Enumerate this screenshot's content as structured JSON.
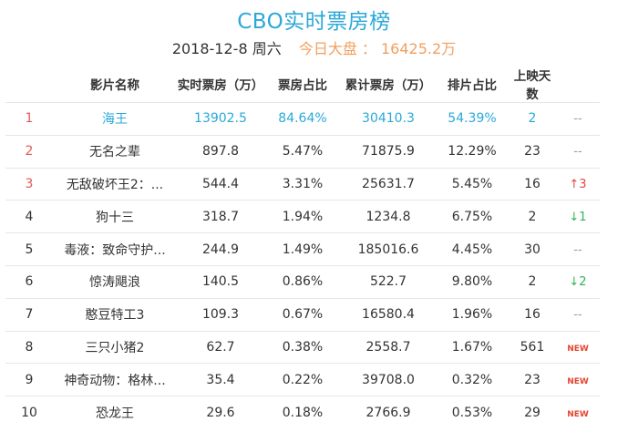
{
  "header": {
    "title": "CBO实时票房榜",
    "date": "2018-12-8 周六",
    "market_label": "今日大盘 ：",
    "market_value": "16425.2万"
  },
  "columns": [
    "影片名称",
    "实时票房（万）",
    "票房占比",
    "累计票房（万）",
    "排片占比",
    "上映天数",
    ""
  ],
  "rows": [
    {
      "rank": "1",
      "name": "海王",
      "realtime": "13902.5",
      "share": "84.64%",
      "total": "30410.3",
      "screen": "54.39%",
      "days": "2",
      "change": "--",
      "change_type": "none"
    },
    {
      "rank": "2",
      "name": "无名之辈",
      "realtime": "897.8",
      "share": "5.47%",
      "total": "71875.9",
      "screen": "12.29%",
      "days": "23",
      "change": "--",
      "change_type": "none"
    },
    {
      "rank": "3",
      "name": "无敌破坏王2：...",
      "realtime": "544.4",
      "share": "3.31%",
      "total": "25631.7",
      "screen": "5.45%",
      "days": "16",
      "change": "↑3",
      "change_type": "up"
    },
    {
      "rank": "4",
      "name": "狗十三",
      "realtime": "318.7",
      "share": "1.94%",
      "total": "1234.8",
      "screen": "6.75%",
      "days": "2",
      "change": "↓1",
      "change_type": "down"
    },
    {
      "rank": "5",
      "name": "毒液：致命守护...",
      "realtime": "244.9",
      "share": "1.49%",
      "total": "185016.6",
      "screen": "4.45%",
      "days": "30",
      "change": "--",
      "change_type": "none"
    },
    {
      "rank": "6",
      "name": "惊涛飓浪",
      "realtime": "140.5",
      "share": "0.86%",
      "total": "522.7",
      "screen": "9.80%",
      "days": "2",
      "change": "↓2",
      "change_type": "down"
    },
    {
      "rank": "7",
      "name": "憨豆特工3",
      "realtime": "109.3",
      "share": "0.67%",
      "total": "16580.4",
      "screen": "1.96%",
      "days": "16",
      "change": "--",
      "change_type": "none"
    },
    {
      "rank": "8",
      "name": "三只小猪2",
      "realtime": "62.7",
      "share": "0.38%",
      "total": "2558.7",
      "screen": "1.67%",
      "days": "561",
      "change": "NEW",
      "change_type": "new"
    },
    {
      "rank": "9",
      "name": "神奇动物：格林...",
      "realtime": "35.4",
      "share": "0.22%",
      "total": "39708.0",
      "screen": "0.32%",
      "days": "23",
      "change": "NEW",
      "change_type": "new"
    },
    {
      "rank": "10",
      "name": "恐龙王",
      "realtime": "29.6",
      "share": "0.18%",
      "total": "2766.9",
      "screen": "0.53%",
      "days": "29",
      "change": "NEW",
      "change_type": "new"
    }
  ]
}
